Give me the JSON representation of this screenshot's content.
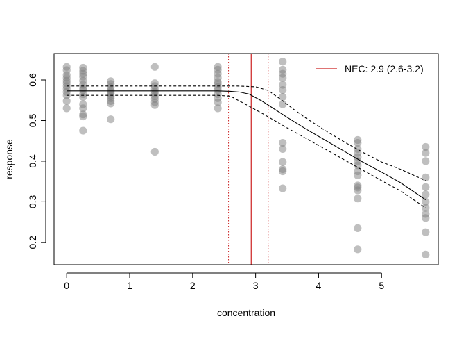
{
  "chart_data": {
    "type": "scatter",
    "title": "",
    "xlabel": "concentration",
    "ylabel": "response",
    "xlim": [
      -0.2,
      5.9
    ],
    "ylim": [
      0.145,
      0.665
    ],
    "xticks": [
      0,
      1,
      2,
      3,
      4,
      5
    ],
    "yticks": [
      0.2,
      0.3,
      0.4,
      0.5,
      0.6
    ],
    "grid": false,
    "legend": {
      "position": "top-right",
      "label": "NEC: 2.9 (2.6-3.2)",
      "color": "#cc2222"
    },
    "nec": {
      "estimate": 2.93,
      "lower": 2.57,
      "upper": 3.2
    },
    "points_color": "#808080",
    "points": [
      {
        "x": 0,
        "y": 0.632
      },
      {
        "x": 0,
        "y": 0.624
      },
      {
        "x": 0,
        "y": 0.612
      },
      {
        "x": 0,
        "y": 0.605
      },
      {
        "x": 0,
        "y": 0.598
      },
      {
        "x": 0,
        "y": 0.592
      },
      {
        "x": 0,
        "y": 0.585
      },
      {
        "x": 0,
        "y": 0.578
      },
      {
        "x": 0,
        "y": 0.57
      },
      {
        "x": 0,
        "y": 0.562
      },
      {
        "x": 0,
        "y": 0.548
      },
      {
        "x": 0,
        "y": 0.53
      },
      {
        "x": 0.26,
        "y": 0.63
      },
      {
        "x": 0.26,
        "y": 0.622
      },
      {
        "x": 0.26,
        "y": 0.615
      },
      {
        "x": 0.26,
        "y": 0.608
      },
      {
        "x": 0.26,
        "y": 0.598
      },
      {
        "x": 0.26,
        "y": 0.588
      },
      {
        "x": 0.26,
        "y": 0.58
      },
      {
        "x": 0.26,
        "y": 0.575
      },
      {
        "x": 0.26,
        "y": 0.565
      },
      {
        "x": 0.26,
        "y": 0.558
      },
      {
        "x": 0.26,
        "y": 0.54
      },
      {
        "x": 0.26,
        "y": 0.53
      },
      {
        "x": 0.26,
        "y": 0.515
      },
      {
        "x": 0.26,
        "y": 0.51
      },
      {
        "x": 0.26,
        "y": 0.475
      },
      {
        "x": 0.7,
        "y": 0.597
      },
      {
        "x": 0.7,
        "y": 0.59
      },
      {
        "x": 0.7,
        "y": 0.582
      },
      {
        "x": 0.7,
        "y": 0.575
      },
      {
        "x": 0.7,
        "y": 0.57
      },
      {
        "x": 0.7,
        "y": 0.566
      },
      {
        "x": 0.7,
        "y": 0.56
      },
      {
        "x": 0.7,
        "y": 0.555
      },
      {
        "x": 0.7,
        "y": 0.548
      },
      {
        "x": 0.7,
        "y": 0.542
      },
      {
        "x": 0.7,
        "y": 0.503
      },
      {
        "x": 1.4,
        "y": 0.632
      },
      {
        "x": 1.4,
        "y": 0.592
      },
      {
        "x": 1.4,
        "y": 0.585
      },
      {
        "x": 1.4,
        "y": 0.578
      },
      {
        "x": 1.4,
        "y": 0.572
      },
      {
        "x": 1.4,
        "y": 0.566
      },
      {
        "x": 1.4,
        "y": 0.56
      },
      {
        "x": 1.4,
        "y": 0.553
      },
      {
        "x": 1.4,
        "y": 0.545
      },
      {
        "x": 1.4,
        "y": 0.538
      },
      {
        "x": 1.4,
        "y": 0.423
      },
      {
        "x": 2.4,
        "y": 0.632
      },
      {
        "x": 2.4,
        "y": 0.625
      },
      {
        "x": 2.4,
        "y": 0.615
      },
      {
        "x": 2.4,
        "y": 0.605
      },
      {
        "x": 2.4,
        "y": 0.595
      },
      {
        "x": 2.4,
        "y": 0.59
      },
      {
        "x": 2.4,
        "y": 0.582
      },
      {
        "x": 2.4,
        "y": 0.575
      },
      {
        "x": 2.4,
        "y": 0.565
      },
      {
        "x": 2.4,
        "y": 0.555
      },
      {
        "x": 2.4,
        "y": 0.545
      },
      {
        "x": 2.4,
        "y": 0.53
      },
      {
        "x": 3.43,
        "y": 0.645
      },
      {
        "x": 3.43,
        "y": 0.625
      },
      {
        "x": 3.43,
        "y": 0.615
      },
      {
        "x": 3.43,
        "y": 0.605
      },
      {
        "x": 3.43,
        "y": 0.588
      },
      {
        "x": 3.43,
        "y": 0.575
      },
      {
        "x": 3.43,
        "y": 0.558
      },
      {
        "x": 3.43,
        "y": 0.54
      },
      {
        "x": 3.43,
        "y": 0.445
      },
      {
        "x": 3.43,
        "y": 0.43
      },
      {
        "x": 3.43,
        "y": 0.398
      },
      {
        "x": 3.43,
        "y": 0.38
      },
      {
        "x": 3.43,
        "y": 0.375
      },
      {
        "x": 3.43,
        "y": 0.333
      },
      {
        "x": 4.62,
        "y": 0.452
      },
      {
        "x": 4.62,
        "y": 0.445
      },
      {
        "x": 4.62,
        "y": 0.43
      },
      {
        "x": 4.62,
        "y": 0.42
      },
      {
        "x": 4.62,
        "y": 0.41
      },
      {
        "x": 4.62,
        "y": 0.4
      },
      {
        "x": 4.62,
        "y": 0.39
      },
      {
        "x": 4.62,
        "y": 0.375
      },
      {
        "x": 4.62,
        "y": 0.365
      },
      {
        "x": 4.62,
        "y": 0.34
      },
      {
        "x": 4.62,
        "y": 0.335
      },
      {
        "x": 4.62,
        "y": 0.328
      },
      {
        "x": 4.62,
        "y": 0.308
      },
      {
        "x": 4.62,
        "y": 0.235
      },
      {
        "x": 4.62,
        "y": 0.183
      },
      {
        "x": 5.7,
        "y": 0.435
      },
      {
        "x": 5.7,
        "y": 0.42
      },
      {
        "x": 5.7,
        "y": 0.4
      },
      {
        "x": 5.7,
        "y": 0.36
      },
      {
        "x": 5.7,
        "y": 0.336
      },
      {
        "x": 5.7,
        "y": 0.318
      },
      {
        "x": 5.7,
        "y": 0.3
      },
      {
        "x": 5.7,
        "y": 0.285
      },
      {
        "x": 5.7,
        "y": 0.27
      },
      {
        "x": 5.7,
        "y": 0.26
      },
      {
        "x": 5.7,
        "y": 0.225
      },
      {
        "x": 5.7,
        "y": 0.17
      }
    ],
    "fit": {
      "x": [
        0,
        2.4,
        2.6,
        2.75,
        2.9,
        3.1,
        3.3,
        3.5,
        3.8,
        4.1,
        4.4,
        4.7,
        5.0,
        5.3,
        5.7
      ],
      "y": [
        0.573,
        0.573,
        0.572,
        0.57,
        0.565,
        0.548,
        0.528,
        0.508,
        0.479,
        0.452,
        0.425,
        0.398,
        0.373,
        0.347,
        0.305
      ]
    },
    "fit_upper": {
      "x": [
        0,
        2.4,
        2.7,
        3.0,
        3.2,
        3.4,
        3.6,
        3.8,
        4.1,
        4.4,
        4.7,
        5.0,
        5.3,
        5.7
      ],
      "y": [
        0.585,
        0.585,
        0.585,
        0.583,
        0.574,
        0.552,
        0.528,
        0.506,
        0.476,
        0.448,
        0.422,
        0.398,
        0.38,
        0.352
      ]
    },
    "fit_lower": {
      "x": [
        0,
        2.4,
        2.6,
        2.9,
        3.1,
        3.3,
        3.5,
        3.8,
        4.1,
        4.4,
        4.7,
        5.0,
        5.3,
        5.7
      ],
      "y": [
        0.562,
        0.562,
        0.56,
        0.535,
        0.518,
        0.5,
        0.482,
        0.456,
        0.43,
        0.404,
        0.378,
        0.352,
        0.327,
        0.285
      ]
    }
  }
}
